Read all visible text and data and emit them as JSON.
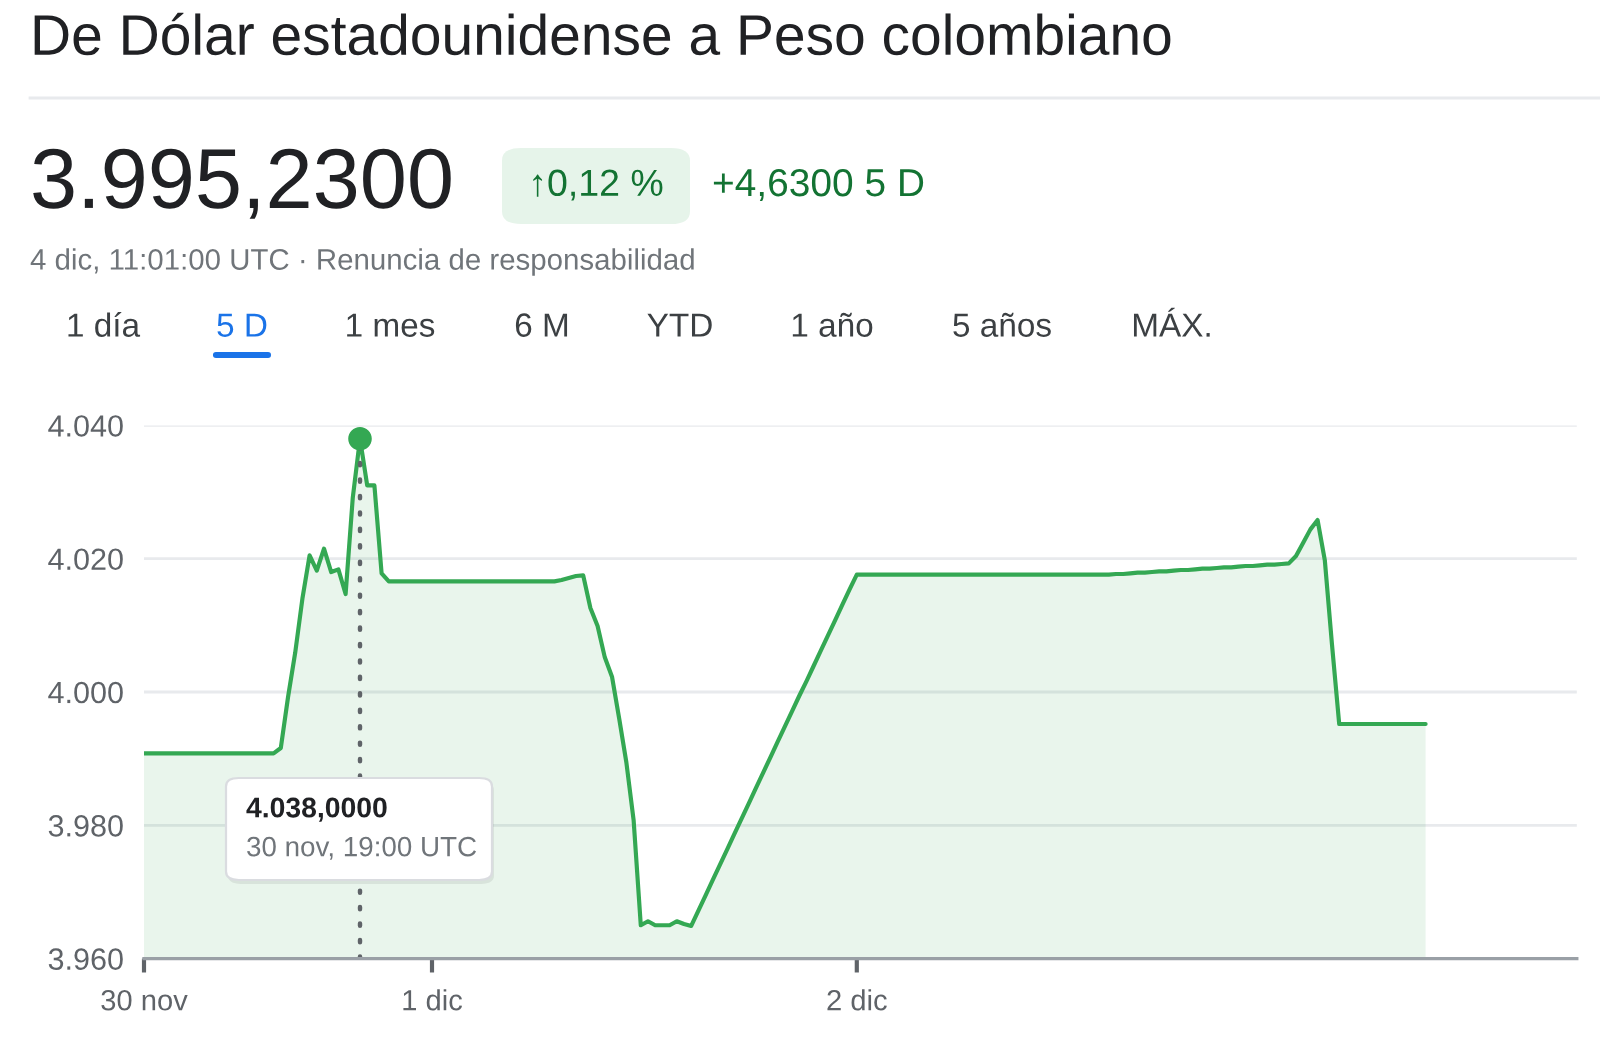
{
  "chart_data": {
    "type": "area",
    "title": "De Dólar estadounidense a Peso colombiano",
    "annotations": [
      "3.995,2300",
      "↑0,12 %",
      "+4,6300 5 D",
      "4 dic, 11:01:00 UTC · Renuncia de responsabilidad",
      "1 día",
      "5 D",
      "1 mes",
      "6 M",
      "YTD",
      "1 año",
      "5 años",
      "MÁX.",
      "4.038,0000",
      "30 nov, 19:00 UTC"
    ],
    "categories": [
      "30 nov",
      null,
      null,
      null,
      null,
      null,
      null,
      null,
      null,
      null,
      null,
      null,
      null,
      null,
      null,
      null,
      null,
      null,
      null,
      null,
      null,
      null,
      null,
      null,
      null,
      null,
      null,
      null,
      null,
      null,
      null,
      null,
      null,
      null,
      null,
      null,
      null,
      null,
      null,
      null,
      "1 dic",
      null,
      null,
      null,
      null,
      null,
      null,
      null,
      null,
      null,
      null,
      null,
      null,
      null,
      null,
      null,
      null,
      null,
      null,
      null,
      null,
      null,
      null,
      null,
      null,
      null,
      null,
      null,
      null,
      null,
      null,
      null,
      null,
      null,
      null,
      null,
      null,
      null,
      null,
      null,
      null,
      null,
      null,
      null,
      null,
      null,
      null,
      null,
      null,
      null,
      null,
      null,
      null,
      null,
      null,
      null,
      null,
      null,
      null,
      "2 dic",
      null,
      null,
      null,
      null,
      null,
      null,
      null,
      null,
      null,
      null,
      null,
      null,
      null,
      null,
      null,
      null,
      null,
      null,
      null,
      null,
      null,
      null,
      null,
      null,
      null,
      null,
      null,
      null,
      null,
      null,
      null,
      null,
      null,
      null,
      null,
      null,
      null,
      null,
      null,
      null,
      null,
      null,
      null,
      null,
      null,
      null,
      null,
      null,
      null,
      null,
      null,
      null,
      null,
      null,
      null,
      null,
      null,
      null,
      null,
      null,
      null,
      null,
      null,
      null,
      null,
      null,
      null,
      null,
      null,
      null,
      null,
      null,
      null,
      null,
      null,
      null,
      null,
      null,
      null,
      null,
      null,
      null,
      null,
      null,
      null,
      null,
      null,
      null,
      null,
      null,
      null,
      null,
      null,
      null,
      null,
      null,
      null,
      null,
      null,
      null
    ],
    "series": [
      {
        "color": "#34a853",
        "values": [
          3990.8,
          3990.8,
          3990.8,
          3990.8,
          3990.8,
          3990.8,
          3990.8,
          3990.8,
          3990.8,
          3990.8,
          3990.8,
          3990.8,
          3990.8,
          3990.8,
          3990.8,
          3990.8,
          3990.8,
          3990.8,
          3990.8,
          3991.6,
          3999.2,
          4005.9,
          4014.0,
          4020.5,
          4018.2,
          4021.5,
          4018.0,
          4018.4,
          4014.7,
          4029.2,
          4038.0,
          4031.0,
          4031.0,
          4017.8,
          4016.6,
          4016.6,
          4016.6,
          4016.6,
          4016.6,
          4016.6,
          4016.6,
          4016.6,
          4016.6,
          4016.6,
          4016.6,
          4016.6,
          4016.6,
          4016.6,
          4016.6,
          4016.6,
          4016.6,
          4016.6,
          4016.6,
          4016.6,
          4016.6,
          4016.6,
          4016.6,
          4016.6,
          4016.8,
          4017.1,
          4017.4,
          4017.5,
          4012.6,
          4009.9,
          4005.2,
          4002.3,
          3996.0,
          3989.4,
          3980.8,
          3965.0,
          3965.6,
          3965.0,
          3965.0,
          3965.0,
          3965.6,
          3965.2,
          3964.9,
          3967.2,
          3969.5,
          3971.8,
          3974.1,
          3976.4,
          3978.7,
          3981.0,
          3983.3,
          3985.6,
          3987.9,
          3990.2,
          3992.5,
          3994.8,
          3997.1,
          3999.4,
          4001.6,
          4003.9,
          4006.2,
          4008.5,
          4010.8,
          4013.1,
          4015.4,
          4017.6,
          4017.6,
          4017.6,
          4017.6,
          4017.6,
          4017.6,
          4017.6,
          4017.6,
          4017.6,
          4017.6,
          4017.6,
          4017.6,
          4017.6,
          4017.6,
          4017.6,
          4017.6,
          4017.6,
          4017.6,
          4017.6,
          4017.6,
          4017.6,
          4017.6,
          4017.6,
          4017.6,
          4017.6,
          4017.6,
          4017.6,
          4017.6,
          4017.6,
          4017.6,
          4017.6,
          4017.6,
          4017.6,
          4017.6,
          4017.6,
          4017.6,
          4017.7,
          4017.7,
          4017.8,
          4017.9,
          4017.9,
          4018.0,
          4018.1,
          4018.1,
          4018.2,
          4018.3,
          4018.3,
          4018.4,
          4018.5,
          4018.5,
          4018.6,
          4018.7,
          4018.7,
          4018.8,
          4018.9,
          4018.9,
          4019.0,
          4019.1,
          4019.1,
          4019.2,
          4019.3,
          4020.4,
          4022.4,
          4024.4,
          4025.8,
          4019.8,
          4007.1,
          3995.2,
          3995.2,
          3995.2,
          3995.2,
          3995.2,
          3995.2,
          3995.2,
          3995.2,
          3995.2,
          3995.2,
          3995.2,
          3995.2,
          3995.2,
          null,
          null,
          null,
          null,
          null,
          null,
          null,
          null,
          null,
          null,
          null,
          null,
          null,
          null,
          null,
          null,
          null,
          null,
          null,
          null,
          null
        ]
      },
      {
        "type": "lollipop",
        "color": "#34a853",
        "marker": "circle",
        "line_style": "dotted",
        "values": [
          null,
          null,
          null,
          null,
          null,
          null,
          null,
          null,
          null,
          null,
          null,
          null,
          null,
          null,
          null,
          null,
          null,
          null,
          null,
          null,
          null,
          null,
          null,
          null,
          null,
          null,
          null,
          null,
          null,
          null,
          4038.0,
          null,
          null,
          null,
          null,
          null,
          null,
          null,
          null,
          null,
          null,
          null,
          null,
          null,
          null,
          null,
          null,
          null,
          null,
          null,
          null,
          null,
          null,
          null,
          null,
          null,
          null,
          null,
          null,
          null,
          null,
          null,
          null,
          null,
          null,
          null,
          null,
          null,
          null,
          null,
          null,
          null,
          null,
          null,
          null,
          null,
          null,
          null,
          null,
          null,
          null,
          null,
          null,
          null,
          null,
          null,
          null,
          null,
          null,
          null,
          null,
          null,
          null,
          null,
          null,
          null,
          null,
          null,
          null,
          null,
          null,
          null,
          null,
          null,
          null,
          null,
          null,
          null,
          null,
          null,
          null,
          null,
          null,
          null,
          null,
          null,
          null,
          null,
          null,
          null,
          null,
          null,
          null,
          null,
          null,
          null,
          null,
          null,
          null,
          null,
          null,
          null,
          null,
          null,
          null,
          null,
          null,
          null,
          null,
          null,
          null,
          null,
          null,
          null,
          null,
          null,
          null,
          null,
          null,
          null,
          null,
          null,
          null,
          null,
          null,
          null,
          null,
          null,
          null,
          null,
          null,
          null,
          null,
          null,
          null,
          null,
          null,
          null,
          null,
          null,
          null,
          null,
          null,
          null,
          null,
          null,
          null,
          null,
          null,
          null,
          null,
          null,
          null,
          null,
          null,
          null,
          null,
          null,
          null,
          null,
          null,
          null,
          null,
          null,
          null,
          null,
          null,
          null,
          null,
          null
        ]
      }
    ],
    "ylim": [
      3960,
      4040
    ],
    "yticks": [
      {
        "value": 3960,
        "label": "3.960"
      },
      {
        "value": 3980,
        "label": "3.980"
      },
      {
        "value": 4000,
        "label": "4.000"
      },
      {
        "value": 4020,
        "label": "4.020"
      },
      {
        "value": 4040,
        "label": "4.040"
      }
    ],
    "grid": "y"
  }
}
